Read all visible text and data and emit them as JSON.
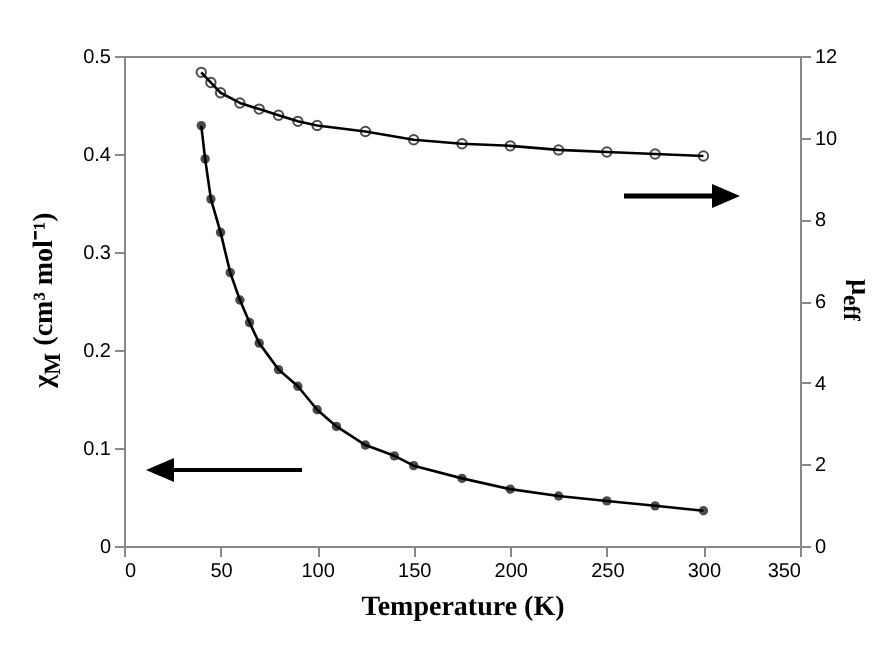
{
  "chart_data": {
    "type": "line",
    "xlabel": "Temperature (K)",
    "ylabel": "χ$_{M}$ (cm³ mol⁻¹)",
    "y2label": "μ$_{eff}$",
    "x": [
      40,
      42,
      45,
      50,
      55,
      60,
      65,
      70,
      80,
      90,
      100,
      110,
      125,
      140,
      150,
      175,
      200,
      225,
      250,
      275,
      300
    ],
    "series": [
      {
        "color": "#000000",
        "values": [
          0.429,
          0.395,
          0.354,
          0.32,
          0.279,
          0.251,
          0.228,
          0.207,
          0.18,
          0.163,
          0.139,
          0.122,
          0.103,
          0.092,
          0.082,
          0.069,
          0.058,
          0.051,
          0.046,
          0.041,
          0.036
        ]
      },
      {
        "color": "#000000",
        "axis": "y2",
        "x": [
          40,
          45,
          50,
          60,
          70,
          80,
          90,
          100,
          125,
          150,
          175,
          200,
          225,
          250,
          275,
          300
        ],
        "values": [
          11.6,
          11.35,
          11.1,
          10.85,
          10.7,
          10.55,
          10.4,
          10.3,
          10.15,
          9.95,
          9.85,
          9.8,
          9.7,
          9.65,
          9.6,
          9.55
        ]
      }
    ],
    "xlim": [
      0,
      350
    ],
    "xticks": [
      0,
      50,
      100,
      150,
      200,
      250,
      300,
      350
    ],
    "ylim": [
      0,
      0.5
    ],
    "yticks": [
      0,
      0.1,
      0.2,
      0.3,
      0.4,
      0.5
    ],
    "y2lim": [
      0,
      12
    ],
    "y2ticks": [
      0,
      2,
      4,
      6,
      8,
      10,
      12
    ],
    "marker": "circle",
    "line_style": "solid",
    "grid": false
  }
}
